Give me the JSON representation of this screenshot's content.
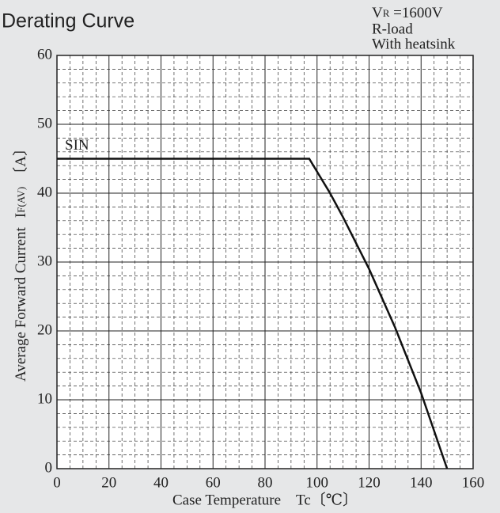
{
  "chart_data": {
    "type": "line",
    "title": "Derating Curve",
    "conditions": {
      "symbol": "V",
      "subscript": "R",
      "value": " =1600V",
      "load": "R-load",
      "cooling": "With heatsink"
    },
    "xlabel": "Case Temperature　Tc〔℃〕",
    "ylabel": {
      "text": "Average Forward Current",
      "symbol": "I",
      "subscript": "F(AV)",
      "unit": "〔A〕"
    },
    "x": [
      0,
      97,
      105,
      110,
      120,
      130,
      140,
      145,
      150
    ],
    "series": [
      {
        "name": "SIN",
        "color": "#111111",
        "values": [
          45,
          45,
          40,
          36.5,
          29,
          20.5,
          11,
          5.5,
          0
        ]
      }
    ],
    "xlim": [
      0,
      160
    ],
    "xticks": [
      0,
      20,
      40,
      60,
      80,
      100,
      120,
      140,
      160
    ],
    "ylim": [
      0,
      60
    ],
    "yticks": [
      0,
      10,
      20,
      30,
      40,
      50,
      60
    ],
    "grid": true
  }
}
